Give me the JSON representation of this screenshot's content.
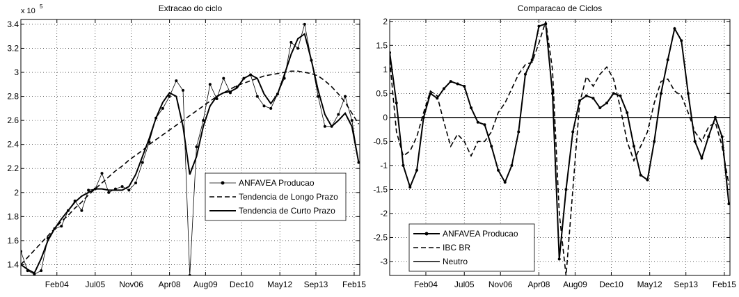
{
  "chart_data": [
    {
      "type": "line",
      "title": "Extracao do ciclo",
      "y_multiplier": "x 10",
      "y_multiplier_exp": "5",
      "x": [
        2002.75,
        2003.0,
        2003.25,
        2003.5,
        2003.75,
        2004.0,
        2004.25,
        2004.5,
        2004.75,
        2005.0,
        2005.25,
        2005.5,
        2005.75,
        2006.0,
        2006.25,
        2006.5,
        2006.75,
        2007.0,
        2007.25,
        2007.5,
        2007.75,
        2008.0,
        2008.25,
        2008.5,
        2008.75,
        2009.0,
        2009.25,
        2009.5,
        2009.75,
        2010.0,
        2010.25,
        2010.5,
        2010.75,
        2011.0,
        2011.25,
        2011.5,
        2011.75,
        2012.0,
        2012.25,
        2012.5,
        2012.75,
        2013.0,
        2013.25,
        2013.5,
        2013.75,
        2014.0,
        2014.25,
        2014.5,
        2014.75,
        2015.0,
        2015.25
      ],
      "series": [
        {
          "name": "ANFAVEA Producao",
          "color": "#000000",
          "style": "solid",
          "width": 0.8,
          "markers": true,
          "values": [
            1.51,
            1.35,
            1.32,
            1.35,
            1.62,
            1.7,
            1.72,
            1.85,
            1.93,
            1.85,
            2.02,
            2.03,
            2.16,
            2.0,
            2.03,
            2.05,
            2.02,
            2.08,
            2.25,
            2.42,
            2.62,
            2.7,
            2.8,
            2.93,
            2.85,
            1.31,
            2.38,
            2.6,
            2.9,
            2.78,
            2.95,
            2.83,
            2.88,
            2.95,
            2.98,
            2.8,
            2.72,
            2.7,
            2.82,
            2.95,
            3.25,
            3.2,
            3.4,
            3.1,
            2.8,
            2.55,
            2.55,
            2.65,
            2.8,
            2.6,
            2.25
          ]
        },
        {
          "name": "Tendencia de Longo Prazo",
          "color": "#000000",
          "style": "dashed",
          "width": 1.6,
          "markers": false,
          "values": [
            1.4,
            1.46,
            1.52,
            1.58,
            1.64,
            1.7,
            1.76,
            1.81,
            1.87,
            1.92,
            1.98,
            2.03,
            2.08,
            2.13,
            2.18,
            2.22,
            2.27,
            2.31,
            2.35,
            2.4,
            2.44,
            2.48,
            2.52,
            2.56,
            2.6,
            2.64,
            2.68,
            2.72,
            2.76,
            2.8,
            2.83,
            2.86,
            2.89,
            2.91,
            2.93,
            2.95,
            2.97,
            2.98,
            2.99,
            3.0,
            3.01,
            3.01,
            3.0,
            2.99,
            2.97,
            2.93,
            2.88,
            2.82,
            2.75,
            2.66,
            2.57
          ]
        },
        {
          "name": "Tendencia de Curto Prazo",
          "color": "#000000",
          "style": "solid",
          "width": 2,
          "markers": false,
          "values": [
            1.4,
            1.36,
            1.33,
            1.45,
            1.6,
            1.7,
            1.78,
            1.85,
            1.92,
            1.97,
            2.0,
            2.03,
            2.03,
            2.02,
            2.02,
            2.02,
            2.05,
            2.15,
            2.3,
            2.45,
            2.62,
            2.75,
            2.83,
            2.8,
            2.55,
            2.15,
            2.3,
            2.55,
            2.72,
            2.8,
            2.83,
            2.84,
            2.87,
            2.95,
            2.98,
            2.95,
            2.82,
            2.74,
            2.82,
            2.98,
            3.15,
            3.28,
            3.32,
            3.1,
            2.85,
            2.65,
            2.55,
            2.6,
            2.66,
            2.55,
            2.25
          ]
        }
      ],
      "xlim": [
        2002.75,
        2015.29
      ],
      "ylim": [
        1.31,
        3.44
      ],
      "xticks": [
        {
          "value": 2004.083,
          "label": "Feb04"
        },
        {
          "value": 2005.5,
          "label": "Jul05"
        },
        {
          "value": 2006.833,
          "label": "Nov06"
        },
        {
          "value": 2008.25,
          "label": "Apr08"
        },
        {
          "value": 2009.583,
          "label": "Aug09"
        },
        {
          "value": 2010.917,
          "label": "Dec10"
        },
        {
          "value": 2012.333,
          "label": "May12"
        },
        {
          "value": 2013.667,
          "label": "Sep13"
        },
        {
          "value": 2015.083,
          "label": "Feb15"
        }
      ],
      "yticks": [
        1.4,
        1.6,
        1.8,
        2,
        2.2,
        2.4,
        2.6,
        2.8,
        3,
        3.2,
        3.4
      ],
      "grid": true,
      "legend": "lower right"
    },
    {
      "type": "line",
      "title": "Comparacao de Ciclos",
      "x": [
        2002.75,
        2003.0,
        2003.25,
        2003.5,
        2003.75,
        2004.0,
        2004.25,
        2004.5,
        2004.75,
        2005.0,
        2005.25,
        2005.5,
        2005.75,
        2006.0,
        2006.25,
        2006.5,
        2006.75,
        2007.0,
        2007.25,
        2007.5,
        2007.75,
        2008.0,
        2008.25,
        2008.5,
        2008.75,
        2009.0,
        2009.25,
        2009.5,
        2009.75,
        2010.0,
        2010.25,
        2010.5,
        2010.75,
        2011.0,
        2011.25,
        2011.5,
        2011.75,
        2012.0,
        2012.25,
        2012.5,
        2012.75,
        2013.0,
        2013.25,
        2013.5,
        2013.75,
        2014.0,
        2014.25,
        2014.5,
        2014.75,
        2015.0,
        2015.25
      ],
      "series": [
        {
          "name": "ANFAVEA Producao",
          "color": "#000000",
          "style": "solid",
          "width": 2,
          "markers": true,
          "values": [
            1.35,
            0.3,
            -1.0,
            -1.45,
            -1.1,
            0.0,
            0.5,
            0.4,
            0.6,
            0.75,
            0.7,
            0.65,
            0.2,
            -0.1,
            -0.15,
            -0.6,
            -1.1,
            -1.35,
            -1.0,
            -0.3,
            0.9,
            1.2,
            1.9,
            1.95,
            0.5,
            -2.95,
            -1.5,
            -0.3,
            0.35,
            0.45,
            0.4,
            0.2,
            0.3,
            0.5,
            0.45,
            0.1,
            -0.6,
            -1.2,
            -1.3,
            -0.5,
            0.5,
            1.2,
            1.85,
            1.6,
            0.5,
            -0.5,
            -0.85,
            -0.4,
            0.0,
            -0.4,
            -1.8
          ]
        },
        {
          "name": "IBC BR",
          "color": "#000000",
          "style": "dashed",
          "width": 1.6,
          "markers": false,
          "values": [
            1.2,
            -0.3,
            -0.8,
            -0.7,
            -0.4,
            0.1,
            0.55,
            0.45,
            -0.1,
            -0.6,
            -0.35,
            -0.5,
            -0.8,
            -0.5,
            -0.5,
            -0.3,
            0.1,
            0.3,
            0.6,
            0.9,
            1.1,
            1.15,
            1.55,
            2.0,
            1.0,
            -2.0,
            -3.3,
            -1.5,
            0.3,
            0.85,
            0.65,
            0.9,
            1.05,
            0.8,
            0.2,
            -0.5,
            -0.9,
            -0.6,
            -0.3,
            0.3,
            0.75,
            0.8,
            0.55,
            0.45,
            0.1,
            -0.3,
            -0.5,
            -0.2,
            -0.1,
            -0.6,
            -1.4
          ]
        },
        {
          "name": "Neutro",
          "color": "#000000",
          "style": "solid",
          "width": 1.5,
          "markers": false,
          "x": [
            2002.75,
            2015.29
          ],
          "values": [
            0,
            0
          ]
        }
      ],
      "xlim": [
        2002.75,
        2015.29
      ],
      "ylim": [
        -3.29,
        2.04
      ],
      "xticks": [
        {
          "value": 2004.083,
          "label": "Feb04"
        },
        {
          "value": 2005.5,
          "label": "Jul05"
        },
        {
          "value": 2006.833,
          "label": "Nov06"
        },
        {
          "value": 2008.25,
          "label": "Apr08"
        },
        {
          "value": 2009.583,
          "label": "Aug09"
        },
        {
          "value": 2010.917,
          "label": "Dec10"
        },
        {
          "value": 2012.333,
          "label": "May12"
        },
        {
          "value": 2013.667,
          "label": "Sep13"
        },
        {
          "value": 2015.083,
          "label": "Feb15"
        }
      ],
      "yticks": [
        -3,
        -2.5,
        -2,
        -1.5,
        -1,
        -0.5,
        0,
        0.5,
        1,
        1.5,
        2
      ],
      "grid": true,
      "legend": "lower left"
    }
  ]
}
